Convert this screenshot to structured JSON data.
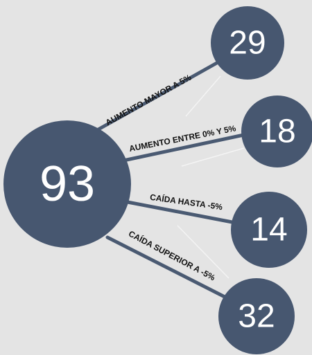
{
  "center": {
    "value": 93
  },
  "branches": [
    {
      "label": "AUMENTO MAYOR A 5%",
      "value": 29
    },
    {
      "label": "AUMENTO ENTRE 0% Y 5%",
      "value": 18
    },
    {
      "label": "CAÍDA HASTA -5%",
      "value": 14
    },
    {
      "label": "CAÍDA SUPERIOR A -5%",
      "value": 32
    }
  ]
}
